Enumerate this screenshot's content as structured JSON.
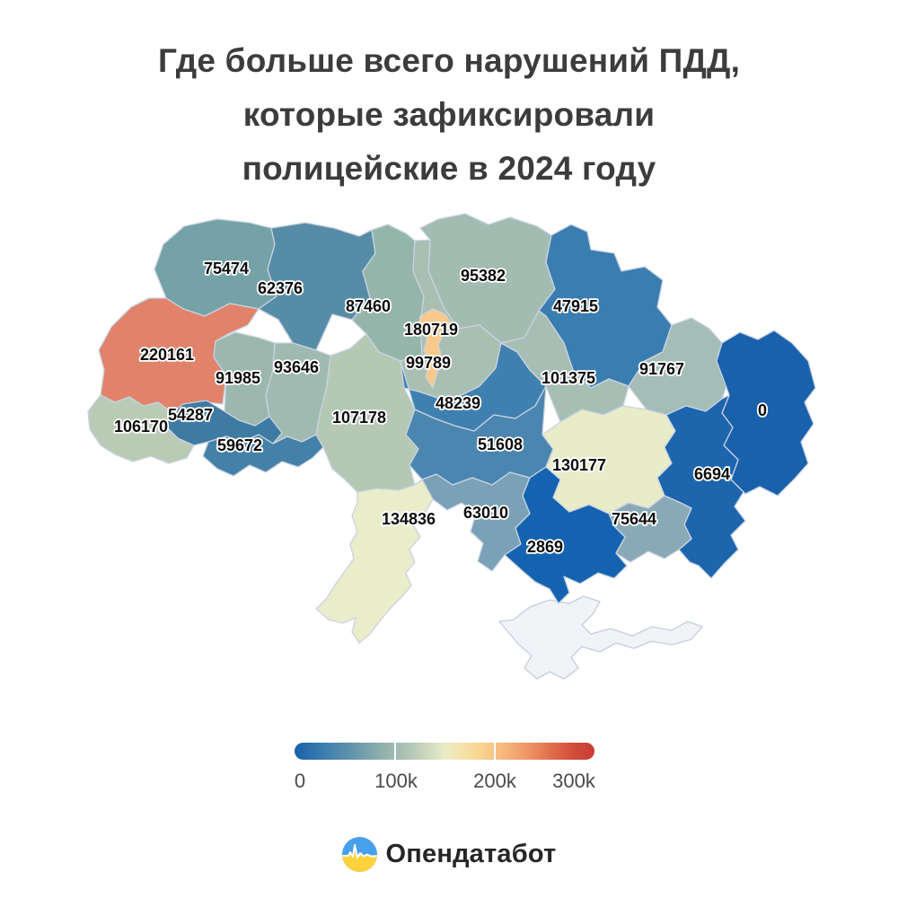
{
  "title": {
    "lines": [
      "Где больше всего нарушений ПДД,",
      "которые зафиксировали",
      "полицейские в 2024 году"
    ]
  },
  "chart_data": {
    "type": "choropleth",
    "title": "Где больше всего нарушений ПДД, которые зафиксировали полицейские в 2024 году",
    "geography": "Ukraine oblasts",
    "unit": "зафиксированные нарушения ПДД",
    "color_scale": {
      "type": "gradient",
      "domain": [
        0,
        300000
      ],
      "tick_labels": [
        "0",
        "100k",
        "200k",
        "300k"
      ],
      "stops": [
        "#1a61ab",
        "#a8bfb2",
        "#e9ecc6",
        "#f9d08d",
        "#ee9465",
        "#c93b33"
      ]
    },
    "regions": [
      {
        "id": "volyn",
        "value": 75474,
        "label": "75474",
        "fill": "#74a2a6"
      },
      {
        "id": "rivne",
        "value": 62376,
        "label": "62376",
        "fill": "#578ca6"
      },
      {
        "id": "zhytomyr",
        "value": 87460,
        "label": "87460",
        "fill": "#95b5ab"
      },
      {
        "id": "chernihiv",
        "value": 95382,
        "label": "95382",
        "fill": "#a2bcb1"
      },
      {
        "id": "kyiv-oblast",
        "value": 99789,
        "label": "99789",
        "fill": "#a8bfb2"
      },
      {
        "id": "sumy",
        "value": 47915,
        "label": "47915",
        "fill": "#3a7db0"
      },
      {
        "id": "lviv",
        "value": 220161,
        "label": "220161",
        "fill": "#e0836a"
      },
      {
        "id": "ternopil",
        "value": 91985,
        "label": "91985",
        "fill": "#9cb8ae"
      },
      {
        "id": "khmelnytskyi",
        "value": 93646,
        "label": "93646",
        "fill": "#9fbab0"
      },
      {
        "id": "zakarpattia",
        "value": 106170,
        "label": "106170",
        "fill": "#b9cbb4"
      },
      {
        "id": "ivano-frankivsk",
        "value": 54287,
        "label": "54287",
        "fill": "#3e7ba3"
      },
      {
        "id": "chernivtsi",
        "value": 59672,
        "label": "59672",
        "fill": "#4481a9"
      },
      {
        "id": "vinnytsia",
        "value": 107178,
        "label": "107178",
        "fill": "#b4c8b4"
      },
      {
        "id": "cherkasy",
        "value": 48239,
        "label": "48239",
        "fill": "#4080b0"
      },
      {
        "id": "poltava",
        "value": 101375,
        "label": "101375",
        "fill": "#a7beb4"
      },
      {
        "id": "kharkiv",
        "value": 91767,
        "label": "91767",
        "fill": "#a4bdb6"
      },
      {
        "id": "luhansk",
        "value": 0,
        "label": "0",
        "fill": "#1a61ab"
      },
      {
        "id": "kirovohrad",
        "value": 51608,
        "label": "51608",
        "fill": "#4a86b0"
      },
      {
        "id": "dnipro",
        "value": 130177,
        "label": "130177",
        "fill": "#e9ecc8"
      },
      {
        "id": "donetsk",
        "value": 6694,
        "label": "6694",
        "fill": "#1d65ad"
      },
      {
        "id": "zaporizhzhia",
        "value": 75644,
        "label": "75644",
        "fill": "#8aa9b6"
      },
      {
        "id": "mykolaiv",
        "value": 63010,
        "label": "63010",
        "fill": "#7aa1b5"
      },
      {
        "id": "kherson",
        "value": 2869,
        "label": "2869",
        "fill": "#1563b0"
      },
      {
        "id": "odesa",
        "value": 134836,
        "label": "134836",
        "fill": "#eaedca"
      },
      {
        "id": "kyiv-city",
        "value": 180719,
        "label": "180719",
        "fill": "#f9c98c"
      }
    ],
    "no_data": [
      {
        "id": "crimea",
        "fill": "#f2f3f7"
      }
    ],
    "legend_position": "bottom"
  },
  "footer": {
    "brand": "Опендатабот"
  },
  "colors": {
    "title_text": "#3c3c3c",
    "region_border": "#c9d3e3",
    "label_text": "#0c0c0c",
    "label_halo": "#ffffff",
    "legend_text": "#4a4a4a",
    "logo_blue": "#47a0ec",
    "logo_yellow": "#ffd23e"
  }
}
